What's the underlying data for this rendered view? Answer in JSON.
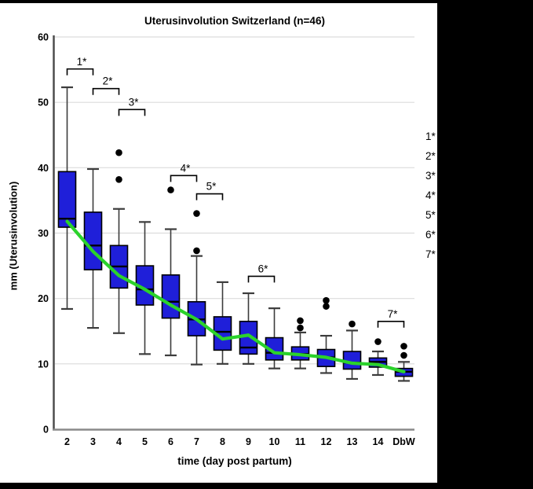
{
  "title": "Uterusinvolution Switzerland (n=46)",
  "colors": {
    "box_fill": "#1f1fd9",
    "box_border": "#000000",
    "median": "#000000",
    "whisker": "#3c3c3c",
    "mean_line": "#2bd22b",
    "gridline": "#dcdcdc",
    "y_axis": "#4d4d4d",
    "x_axis": "#8a8a8a",
    "outlier": "#000000",
    "mask": "#000000"
  },
  "chart_data": {
    "type": "boxplot",
    "title": "Uterusinvolution Switzerland (n=46)",
    "xlabel": "time (day post partum)",
    "ylabel": "mm (Uterusinvolution)",
    "ylim": [
      0,
      60
    ],
    "yticks": [
      0,
      10,
      20,
      30,
      40,
      50,
      60
    ],
    "grid": true,
    "legend_position": "right-clipped",
    "categories": [
      "2",
      "3",
      "4",
      "5",
      "6",
      "7",
      "8",
      "9",
      "10",
      "11",
      "12",
      "13",
      "14",
      "DbW"
    ],
    "boxes": [
      {
        "category": "2",
        "whisker_low": 18.4,
        "q1": 30.9,
        "median": 32.2,
        "q3": 39.4,
        "whisker_high": 52.3,
        "outliers": []
      },
      {
        "category": "3",
        "whisker_low": 15.5,
        "q1": 24.4,
        "median": 28.1,
        "q3": 33.2,
        "whisker_high": 39.8,
        "outliers": []
      },
      {
        "category": "4",
        "whisker_low": 14.7,
        "q1": 21.6,
        "median": 24.9,
        "q3": 28.1,
        "whisker_high": 33.7,
        "outliers": [
          42.3,
          38.2
        ]
      },
      {
        "category": "5",
        "whisker_low": 11.5,
        "q1": 19.0,
        "median": 21.4,
        "q3": 25.0,
        "whisker_high": 31.7,
        "outliers": []
      },
      {
        "category": "6",
        "whisker_low": 11.3,
        "q1": 17.0,
        "median": 19.5,
        "q3": 23.6,
        "whisker_high": 30.6,
        "outliers": [
          36.6
        ]
      },
      {
        "category": "7",
        "whisker_low": 9.9,
        "q1": 14.3,
        "median": 16.8,
        "q3": 19.5,
        "whisker_high": 26.5,
        "outliers": [
          33.0,
          27.3
        ]
      },
      {
        "category": "8",
        "whisker_low": 10.0,
        "q1": 12.1,
        "median": 14.9,
        "q3": 17.2,
        "whisker_high": 22.5,
        "outliers": []
      },
      {
        "category": "9",
        "whisker_low": 10.0,
        "q1": 11.5,
        "median": 12.5,
        "q3": 16.5,
        "whisker_high": 20.8,
        "outliers": []
      },
      {
        "category": "10",
        "whisker_low": 9.3,
        "q1": 10.6,
        "median": 11.7,
        "q3": 14.0,
        "whisker_high": 18.5,
        "outliers": []
      },
      {
        "category": "11",
        "whisker_low": 9.3,
        "q1": 10.6,
        "median": 11.5,
        "q3": 12.6,
        "whisker_high": 14.8,
        "outliers": [
          16.6,
          15.5
        ]
      },
      {
        "category": "12",
        "whisker_low": 8.6,
        "q1": 9.6,
        "median": 11.0,
        "q3": 12.2,
        "whisker_high": 14.3,
        "outliers": [
          19.7,
          18.8
        ]
      },
      {
        "category": "13",
        "whisker_low": 7.7,
        "q1": 9.2,
        "median": 10.2,
        "q3": 11.9,
        "whisker_high": 15.1,
        "outliers": [
          16.1
        ]
      },
      {
        "category": "14",
        "whisker_low": 8.3,
        "q1": 9.5,
        "median": 10.3,
        "q3": 10.9,
        "whisker_high": 11.9,
        "outliers": [
          13.4
        ]
      },
      {
        "category": "DbW",
        "whisker_low": 7.4,
        "q1": 8.1,
        "median": 8.8,
        "q3": 9.3,
        "whisker_high": 10.3,
        "outliers": [
          12.7,
          11.3
        ]
      }
    ],
    "series": [
      {
        "name": "mean",
        "type": "line",
        "values": [
          31.8,
          27.2,
          23.5,
          21.4,
          19.0,
          16.8,
          13.8,
          14.4,
          11.7,
          11.4,
          11.0,
          10.1,
          9.9,
          8.8
        ]
      }
    ],
    "significance_brackets": [
      {
        "label": "1*",
        "from": "2",
        "to": "3",
        "bar_value": 55.1
      },
      {
        "label": "2*",
        "from": "3",
        "to": "4",
        "bar_value": 52.1
      },
      {
        "label": "3*",
        "from": "4",
        "to": "5",
        "bar_value": 48.9
      },
      {
        "label": "4*",
        "from": "6",
        "to": "7",
        "bar_value": 38.8
      },
      {
        "label": "5*",
        "from": "7",
        "to": "8",
        "bar_value": 36.0
      },
      {
        "label": "6*",
        "from": "9",
        "to": "10",
        "bar_value": 23.4
      },
      {
        "label": "7*",
        "from": "14",
        "to": "DbW",
        "bar_value": 16.5
      }
    ]
  },
  "legend_fragments": {
    "items": [
      "1*",
      "2*",
      "3*",
      "4*",
      "5*",
      "6*",
      "7*"
    ]
  }
}
